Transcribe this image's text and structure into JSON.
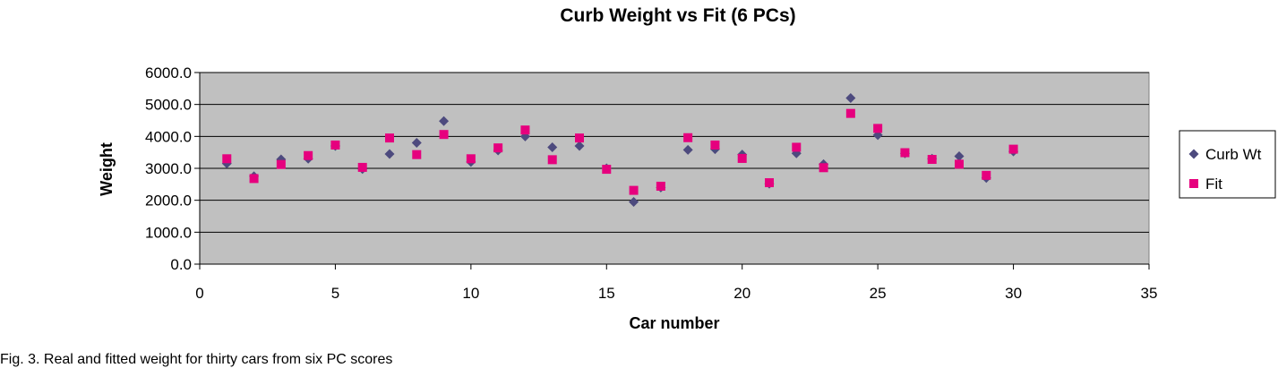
{
  "chart_data": {
    "type": "scatter",
    "title": "Curb Weight vs Fit (6 PCs)",
    "xlabel": "Car number",
    "ylabel": "Weight",
    "xlim": [
      0,
      35
    ],
    "ylim": [
      0,
      6000
    ],
    "xticks": [
      0,
      5,
      10,
      15,
      20,
      25,
      30,
      35
    ],
    "yticks": [
      0,
      1000,
      2000,
      3000,
      4000,
      5000,
      6000
    ],
    "ytick_labels": [
      "0.0",
      "1000.0",
      "2000.0",
      "3000.0",
      "4000.0",
      "5000.0",
      "6000.0"
    ],
    "grid": "horizontal major gridlines",
    "plot_background": "#c0c0c0",
    "legend_position": "right",
    "series": [
      {
        "name": "Curb Wt",
        "marker": "diamond",
        "color": "#4d4a7e",
        "x": [
          1,
          2,
          3,
          4,
          5,
          6,
          7,
          8,
          9,
          10,
          11,
          12,
          13,
          14,
          15,
          16,
          17,
          18,
          19,
          20,
          21,
          22,
          23,
          24,
          25,
          26,
          27,
          28,
          29,
          30
        ],
        "y": [
          3150,
          2750,
          3280,
          3300,
          3700,
          2980,
          3450,
          3800,
          4480,
          3200,
          3560,
          4000,
          3660,
          3700,
          3000,
          1950,
          2400,
          3580,
          3600,
          3430,
          2520,
          3470,
          3130,
          5200,
          4040,
          3470,
          3300,
          3380,
          2700,
          3530
        ]
      },
      {
        "name": "Fit",
        "marker": "square",
        "color": "#e6007e",
        "x": [
          1,
          2,
          3,
          4,
          5,
          6,
          7,
          8,
          9,
          10,
          11,
          12,
          13,
          14,
          15,
          16,
          17,
          18,
          19,
          20,
          21,
          22,
          23,
          24,
          25,
          26,
          27,
          28,
          29,
          30
        ],
        "y": [
          3300,
          2680,
          3120,
          3400,
          3730,
          3030,
          3950,
          3430,
          4060,
          3300,
          3640,
          4200,
          3270,
          3950,
          2970,
          2310,
          2440,
          3960,
          3730,
          3310,
          2550,
          3660,
          3020,
          4720,
          4250,
          3490,
          3280,
          3130,
          2780,
          3600
        ]
      }
    ]
  },
  "caption": "Fig. 3. Real and fitted weight for thirty cars from six PC scores"
}
